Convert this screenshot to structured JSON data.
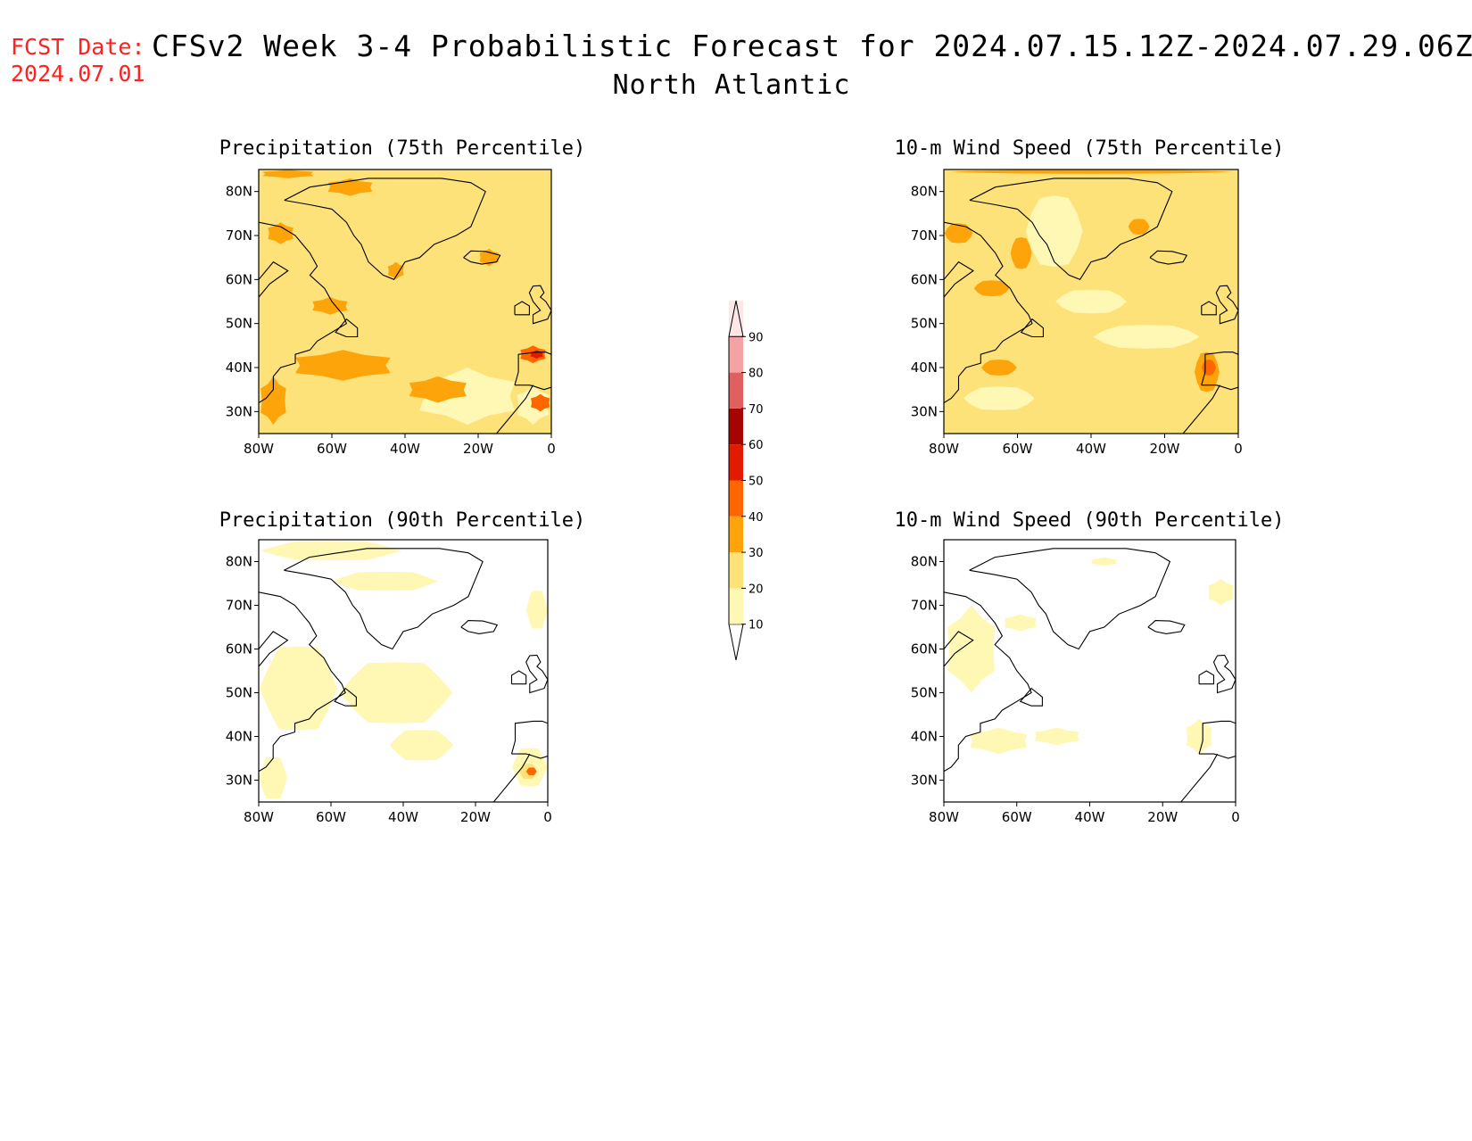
{
  "header": {
    "fcst_label": "FCST Date:",
    "fcst_date": "2024.07.01",
    "title": "CFSv2 Week 3-4 Probabilistic Forecast for 2024.07.15.12Z-2024.07.29.06Z",
    "subtitle": "North Atlantic"
  },
  "map_extent": {
    "lon": [
      -80,
      0
    ],
    "lat": [
      25,
      85
    ]
  },
  "axes": {
    "lon_ticks": [
      {
        "value": -80,
        "label": "80W"
      },
      {
        "value": -60,
        "label": "60W"
      },
      {
        "value": -40,
        "label": "40W"
      },
      {
        "value": -20,
        "label": "20W"
      },
      {
        "value": 0,
        "label": "0"
      }
    ],
    "lat_ticks": [
      {
        "value": 80,
        "label": "80N"
      },
      {
        "value": 70,
        "label": "70N"
      },
      {
        "value": 60,
        "label": "60N"
      },
      {
        "value": 50,
        "label": "50N"
      },
      {
        "value": 40,
        "label": "40N"
      },
      {
        "value": 30,
        "label": "30N"
      }
    ]
  },
  "colorbar": {
    "levels": [
      10,
      20,
      30,
      40,
      50,
      60,
      70,
      80,
      90
    ],
    "labels": [
      "10",
      "20",
      "30",
      "40",
      "50",
      "60",
      "70",
      "80",
      "90"
    ],
    "colors": [
      "#fff8b4",
      "#fde27a",
      "#fca40a",
      "#ff6600",
      "#e21a00",
      "#a50500",
      "#e06060",
      "#f3a3a3",
      "#fde6e6"
    ]
  },
  "panels": [
    {
      "title": "Precipitation (75th Percentile)",
      "background": 1,
      "regions": [
        {
          "level": 0,
          "lon": [
            -38,
            -8
          ],
          "lat": [
            27,
            40
          ]
        },
        {
          "level": 0,
          "lon": [
            -10,
            0
          ],
          "lat": [
            27,
            36
          ]
        },
        {
          "level": 2,
          "lon": [
            -72,
            -42
          ],
          "lat": [
            37,
            44
          ]
        },
        {
          "level": 2,
          "lon": [
            -40,
            -22
          ],
          "lat": [
            32,
            38
          ]
        },
        {
          "level": 2,
          "lon": [
            -80,
            -72
          ],
          "lat": [
            27,
            38
          ]
        },
        {
          "level": 2,
          "lon": [
            -78,
            -70
          ],
          "lat": [
            68,
            73
          ]
        },
        {
          "level": 2,
          "lon": [
            -66,
            -55
          ],
          "lat": [
            52,
            56
          ]
        },
        {
          "level": 2,
          "lon": [
            -62,
            -48
          ],
          "lat": [
            79,
            83
          ]
        },
        {
          "level": 2,
          "lon": [
            -45,
            -40
          ],
          "lat": [
            60,
            64
          ]
        },
        {
          "level": 2,
          "lon": [
            -20,
            -14
          ],
          "lat": [
            63,
            67
          ]
        },
        {
          "level": 2,
          "lon": [
            -80,
            -64
          ],
          "lat": [
            83,
            85
          ]
        },
        {
          "level": 3,
          "lon": [
            -9,
            -1
          ],
          "lat": [
            41,
            45
          ]
        },
        {
          "level": 3,
          "lon": [
            -6,
            0
          ],
          "lat": [
            30,
            34
          ]
        },
        {
          "level": 4,
          "lon": [
            -6,
            -2
          ],
          "lat": [
            42,
            44
          ]
        }
      ]
    },
    {
      "title": "10-m Wind Speed (75th Percentile)",
      "background": 1,
      "regions": [
        {
          "level": 0,
          "lon": [
            -58,
            -42
          ],
          "lat": [
            62,
            80
          ]
        },
        {
          "level": 0,
          "lon": [
            -50,
            -30
          ],
          "lat": [
            52,
            58
          ]
        },
        {
          "level": 0,
          "lon": [
            -75,
            -55
          ],
          "lat": [
            30,
            36
          ]
        },
        {
          "level": 0,
          "lon": [
            -40,
            -10
          ],
          "lat": [
            44,
            50
          ]
        },
        {
          "level": 2,
          "lon": [
            -70,
            -60
          ],
          "lat": [
            38,
            42
          ]
        },
        {
          "level": 2,
          "lon": [
            -12,
            -5
          ],
          "lat": [
            34,
            44
          ]
        },
        {
          "level": 2,
          "lon": [
            -80,
            -72
          ],
          "lat": [
            68,
            73
          ]
        },
        {
          "level": 2,
          "lon": [
            -62,
            -56
          ],
          "lat": [
            62,
            70
          ]
        },
        {
          "level": 2,
          "lon": [
            -72,
            -62
          ],
          "lat": [
            56,
            60
          ]
        },
        {
          "level": 2,
          "lon": [
            -30,
            -24
          ],
          "lat": [
            70,
            74
          ]
        },
        {
          "level": 2,
          "lon": [
            -80,
            0
          ],
          "lat": [
            84,
            85
          ]
        },
        {
          "level": 3,
          "lon": [
            -10,
            -6
          ],
          "lat": [
            38,
            42
          ]
        }
      ]
    },
    {
      "title": "Precipitation (90th Percentile)",
      "background": -1,
      "regions": [
        {
          "level": 0,
          "lon": [
            -80,
            -58
          ],
          "lat": [
            40,
            62
          ]
        },
        {
          "level": 0,
          "lon": [
            -58,
            -26
          ],
          "lat": [
            42,
            58
          ]
        },
        {
          "level": 0,
          "lon": [
            -44,
            -26
          ],
          "lat": [
            34,
            42
          ]
        },
        {
          "level": 0,
          "lon": [
            -80,
            -40
          ],
          "lat": [
            80,
            85
          ]
        },
        {
          "level": 0,
          "lon": [
            -60,
            -30
          ],
          "lat": [
            73,
            78
          ]
        },
        {
          "level": 0,
          "lon": [
            -10,
            0
          ],
          "lat": [
            28,
            38
          ]
        },
        {
          "level": 0,
          "lon": [
            -80,
            -72
          ],
          "lat": [
            25,
            36
          ]
        },
        {
          "level": 0,
          "lon": [
            -6,
            0
          ],
          "lat": [
            64,
            74
          ]
        },
        {
          "level": 1,
          "lon": [
            -8,
            -3
          ],
          "lat": [
            30,
            34
          ]
        },
        {
          "level": 3,
          "lon": [
            -6,
            -3
          ],
          "lat": [
            31,
            33
          ]
        }
      ]
    },
    {
      "title": "10-m Wind Speed (90th Percentile)",
      "background": -1,
      "regions": [
        {
          "level": 0,
          "lon": [
            -80,
            -65
          ],
          "lat": [
            50,
            70
          ]
        },
        {
          "level": 0,
          "lon": [
            -74,
            -56
          ],
          "lat": [
            36,
            42
          ]
        },
        {
          "level": 0,
          "lon": [
            -56,
            -42
          ],
          "lat": [
            38,
            42
          ]
        },
        {
          "level": 0,
          "lon": [
            -14,
            -6
          ],
          "lat": [
            36,
            44
          ]
        },
        {
          "level": 0,
          "lon": [
            -8,
            0
          ],
          "lat": [
            70,
            76
          ]
        },
        {
          "level": 0,
          "lon": [
            -40,
            -32
          ],
          "lat": [
            79,
            81
          ]
        },
        {
          "level": 0,
          "lon": [
            -64,
            -54
          ],
          "lat": [
            64,
            68
          ]
        }
      ]
    }
  ]
}
